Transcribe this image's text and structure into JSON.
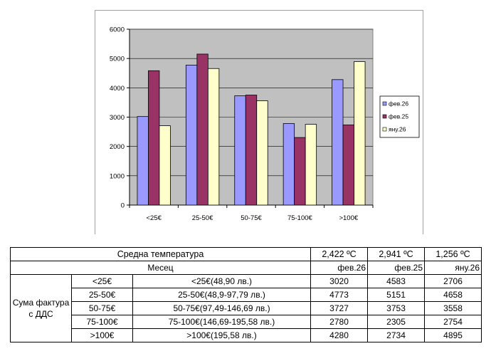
{
  "chart_data": {
    "type": "bar",
    "categories": [
      "<25€",
      "25-50€",
      "50-75€",
      "75-100€",
      ">100€"
    ],
    "series": [
      {
        "name": "фев.26",
        "color": "#9999ff",
        "values": [
          3020,
          4773,
          3727,
          2780,
          4280
        ]
      },
      {
        "name": "фев.25",
        "color": "#993366",
        "values": [
          4583,
          5151,
          3753,
          2305,
          2734
        ]
      },
      {
        "name": "яну.26",
        "color": "#ffffcc",
        "values": [
          2706,
          4658,
          3558,
          2754,
          4895
        ]
      }
    ],
    "ylim": [
      0,
      6000
    ],
    "yticks": [
      "0",
      "1000",
      "2000",
      "3000",
      "4000",
      "5000",
      "6000"
    ],
    "plot_background": "#c0c0c0",
    "grid": true,
    "legend_position": "right"
  },
  "table": {
    "temp_label": "Средна температура",
    "temps": [
      "2,422 ºC",
      "2,941 ºC",
      "1,256 ºC"
    ],
    "month_label": "Месец",
    "months": [
      "фев.26",
      "фев.25",
      "яну.26"
    ],
    "group_label": "Сума фактура с ДДС",
    "rows": [
      {
        "range": "<25€",
        "desc": "<25€(48,90 лв.)",
        "v1": "3020",
        "v2": "4583",
        "v3": "2706"
      },
      {
        "range": "25-50€",
        "desc": "25-50€(48,9-97,79 лв.)",
        "v1": "4773",
        "v2": "5151",
        "v3": "4658"
      },
      {
        "range": "50-75€",
        "desc": "50-75€(97,49-146,69 лв.)",
        "v1": "3727",
        "v2": "3753",
        "v3": "3558"
      },
      {
        "range": "75-100€",
        "desc": "75-100€(146,69-195,58 лв.)",
        "v1": "2780",
        "v2": "2305",
        "v3": "2754"
      },
      {
        "range": ">100€",
        "desc": ">100€(195,58 лв.)",
        "v1": "4280",
        "v2": "2734",
        "v3": "4895"
      }
    ]
  }
}
